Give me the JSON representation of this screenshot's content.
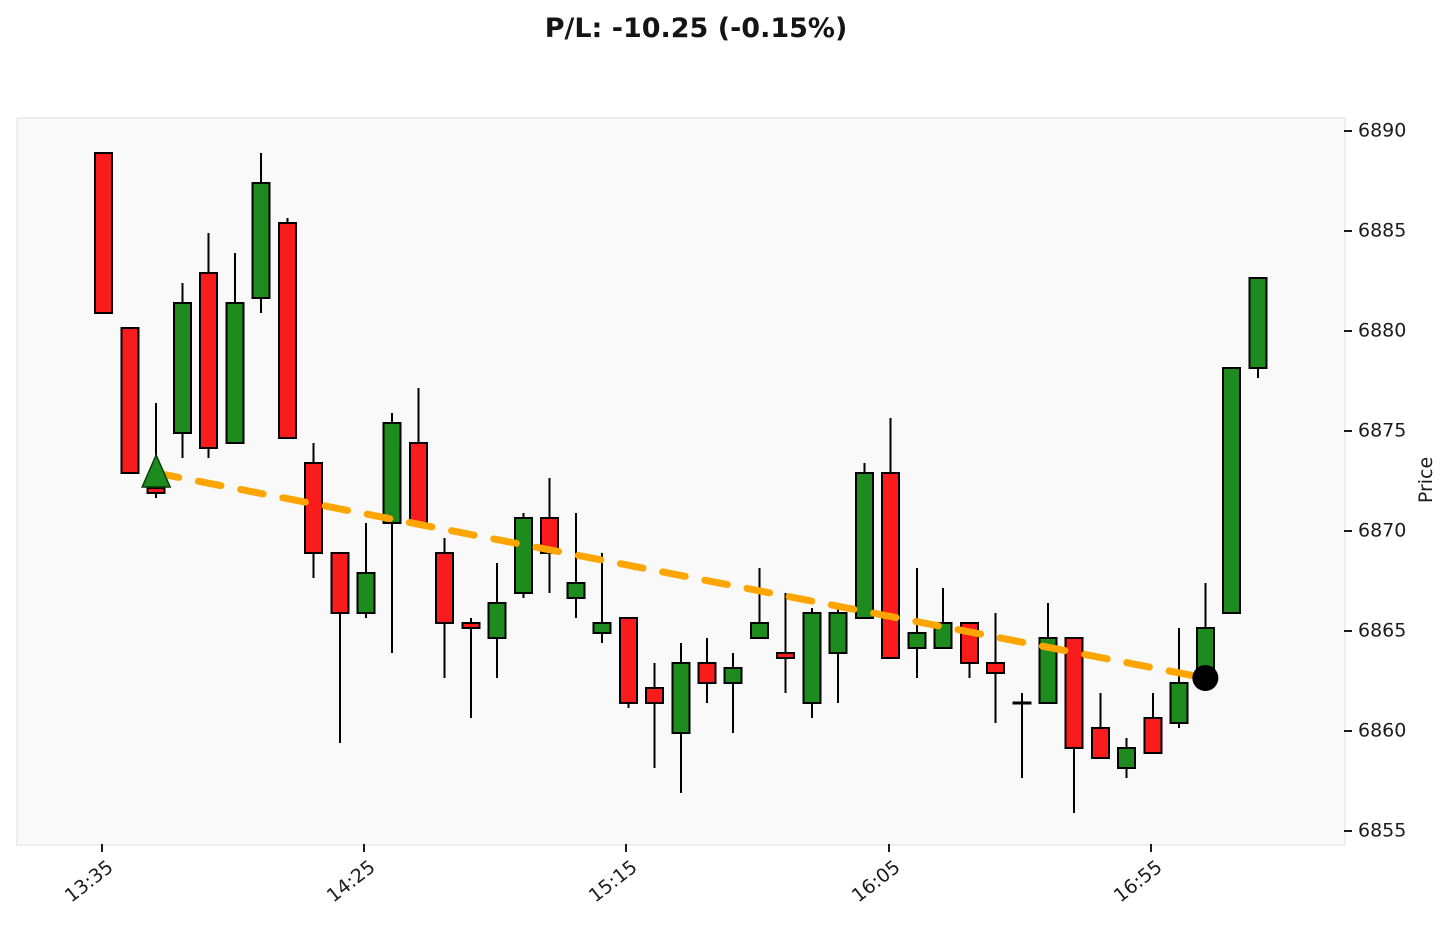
{
  "title": "P/L: -10.25 (-0.15%)",
  "pnl": {
    "points": -10.25,
    "percent": -0.15
  },
  "colors": {
    "up": "#1e8b1e",
    "down": "#fa1c1c",
    "candle_edge": "#000000",
    "wick": "#000000",
    "doji": "#000000",
    "trend_line": "#ffa500",
    "entry_marker": "#1e8b1e",
    "entry_marker_edge": "#073d07",
    "current_marker": "#000000",
    "plot_bg": "#f9f9f9",
    "figure_bg": "#ffffff",
    "tick_text": "#1c1c1c"
  },
  "chart_data": {
    "type": "candlestick",
    "title": "P/L: -10.25 (-0.15%)",
    "ylabel": "Price",
    "ylim": [
      6854.45,
      6890.7
    ],
    "grid": false,
    "y_ticks": [
      6855,
      6860,
      6865,
      6870,
      6875,
      6880,
      6885,
      6890
    ],
    "x_ticks": [
      {
        "label": "13:35",
        "index": 0
      },
      {
        "label": "14:25",
        "index": 10
      },
      {
        "label": "15:15",
        "index": 20
      },
      {
        "label": "16:05",
        "index": 30
      },
      {
        "label": "16:55",
        "index": 40
      }
    ],
    "x": [
      "13:35",
      "13:40",
      "13:45",
      "13:50",
      "13:55",
      "14:00",
      "14:05",
      "14:10",
      "14:15",
      "14:20",
      "14:25",
      "14:30",
      "14:35",
      "14:40",
      "14:45",
      "14:50",
      "14:55",
      "15:00",
      "15:05",
      "15:10",
      "15:15",
      "15:20",
      "15:25",
      "15:30",
      "15:35",
      "15:40",
      "15:45",
      "15:50",
      "15:55",
      "16:00",
      "16:05",
      "16:10",
      "16:15",
      "16:20",
      "16:25",
      "16:30",
      "16:35",
      "16:40",
      "16:45",
      "16:50",
      "16:55",
      "17:00",
      "17:05",
      "17:10",
      "17:15"
    ],
    "ohlc": [
      [
        6889.0,
        6889.0,
        6881.0,
        6881.0
      ],
      [
        6880.25,
        6880.25,
        6873.0,
        6873.0
      ],
      [
        6872.25,
        6876.5,
        6871.75,
        6872.0
      ],
      [
        6875.0,
        6882.5,
        6873.75,
        6881.5
      ],
      [
        6883.0,
        6885.0,
        6873.75,
        6874.25
      ],
      [
        6874.5,
        6884.0,
        6874.5,
        6881.5
      ],
      [
        6881.75,
        6889.0,
        6881.0,
        6887.5
      ],
      [
        6885.5,
        6885.75,
        6874.75,
        6874.75
      ],
      [
        6873.5,
        6874.5,
        6867.75,
        6869.0
      ],
      [
        6869.0,
        6869.0,
        6859.5,
        6866.0
      ],
      [
        6866.0,
        6870.5,
        6865.75,
        6868.0
      ],
      [
        6870.5,
        6876.0,
        6864.0,
        6875.5
      ],
      [
        6874.5,
        6877.25,
        6870.5,
        6870.5
      ],
      [
        6869.0,
        6869.75,
        6862.75,
        6865.5
      ],
      [
        6865.5,
        6865.75,
        6860.75,
        6865.25
      ],
      [
        6864.75,
        6868.5,
        6862.75,
        6866.5
      ],
      [
        6867.0,
        6871.0,
        6866.75,
        6870.75
      ],
      [
        6870.75,
        6872.75,
        6867.0,
        6869.0
      ],
      [
        6866.75,
        6871.0,
        6865.75,
        6867.5
      ],
      [
        6865.0,
        6869.0,
        6864.5,
        6865.5
      ],
      [
        6865.75,
        6865.75,
        6861.25,
        6861.5
      ],
      [
        6862.25,
        6863.5,
        6858.25,
        6861.5
      ],
      [
        6860.0,
        6864.5,
        6857.0,
        6863.5
      ],
      [
        6863.5,
        6864.75,
        6861.5,
        6862.5
      ],
      [
        6862.5,
        6864.0,
        6860.0,
        6863.25
      ],
      [
        6864.75,
        6868.25,
        6864.75,
        6865.5
      ],
      [
        6864.0,
        6867.0,
        6862.0,
        6863.75
      ],
      [
        6861.5,
        6866.25,
        6860.75,
        6866.0
      ],
      [
        6864.0,
        6866.5,
        6861.5,
        6866.0
      ],
      [
        6865.75,
        6873.5,
        6865.75,
        6873.0
      ],
      [
        6873.0,
        6875.75,
        6863.75,
        6863.75
      ],
      [
        6864.25,
        6868.25,
        6862.75,
        6865.0
      ],
      [
        6864.25,
        6867.25,
        6864.25,
        6865.5
      ],
      [
        6865.5,
        6865.5,
        6862.75,
        6863.5
      ],
      [
        6863.5,
        6866.0,
        6860.5,
        6863.0
      ],
      [
        6861.5,
        6862.0,
        6857.75,
        6861.5
      ],
      [
        6861.5,
        6866.5,
        6861.5,
        6864.75
      ],
      [
        6864.75,
        6864.75,
        6856.0,
        6859.25
      ],
      [
        6860.25,
        6862.0,
        6858.75,
        6858.75
      ],
      [
        6858.25,
        6859.75,
        6857.75,
        6859.25
      ],
      [
        6860.75,
        6862.0,
        6859.0,
        6859.0
      ],
      [
        6860.5,
        6865.25,
        6860.25,
        6862.5
      ],
      [
        6863.0,
        6867.5,
        6862.5,
        6865.25
      ],
      [
        6866.0,
        6878.25,
        6866.0,
        6878.25
      ],
      [
        6878.25,
        6882.75,
        6877.75,
        6882.75
      ]
    ],
    "markers": {
      "entry": {
        "time": "13:45",
        "price": 6873.0,
        "symbol": "triangle-up",
        "color": "#1e8b1e"
      },
      "current": {
        "time": "17:05",
        "price": 6862.75,
        "symbol": "dot",
        "color": "#000000"
      }
    },
    "trend_line": {
      "from_time": "13:45",
      "from_price": 6873.0,
      "to_time": "17:05",
      "to_price": 6862.75,
      "style": "dashed",
      "color": "#ffa500"
    }
  }
}
